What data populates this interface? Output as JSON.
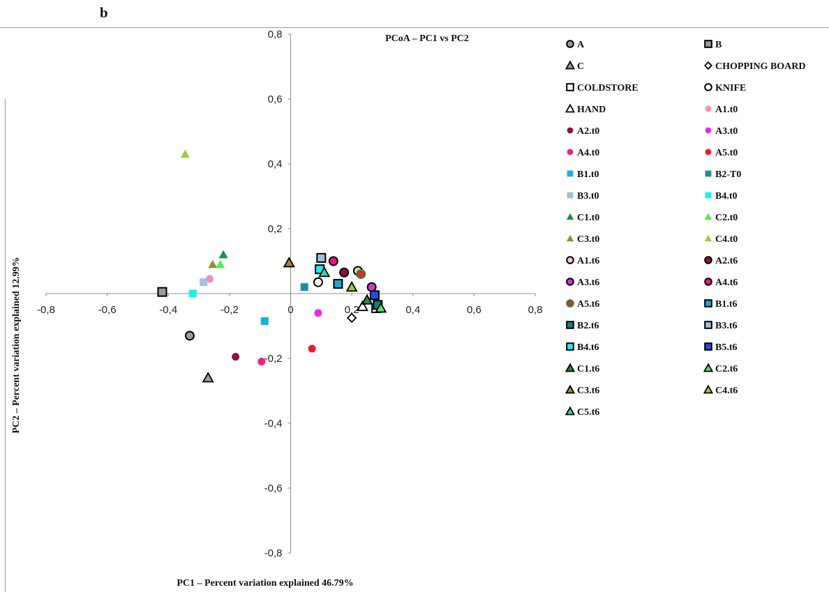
{
  "panel_label": "b",
  "chart_data": {
    "type": "scatter",
    "title": "PCoA – PC1 vs PC2",
    "xlabel": "PC1 – Percent variation explained 46.79%",
    "ylabel": "PC2 – Percent variation explained 12.99%",
    "xlim": [
      -0.8,
      0.8
    ],
    "ylim": [
      -0.8,
      0.8
    ],
    "xticks": [
      "-0,8",
      "-0,6",
      "-0,4",
      "-0,2",
      "0",
      "0,2",
      "0,4",
      "0,6",
      "0,8"
    ],
    "yticks": [
      "0,8",
      "0,6",
      "0,4",
      "0,2",
      "0",
      "-0,2",
      "-0,4",
      "-0,6",
      "-0,8"
    ],
    "grid": false,
    "legend_position": "right",
    "series": [
      {
        "name": "A",
        "marker": "circle",
        "fill": "#9c9c9c",
        "stroke": "#000000",
        "x": -0.33,
        "y": -0.13
      },
      {
        "name": "B",
        "marker": "square",
        "fill": "#9c9c9c",
        "stroke": "#000000",
        "x": -0.42,
        "y": 0.005
      },
      {
        "name": "C",
        "marker": "triangle",
        "fill": "#9c9c9c",
        "stroke": "#000000",
        "x": -0.27,
        "y": -0.26
      },
      {
        "name": "CHOPPING BOARD",
        "marker": "diamond",
        "fill": "#ffffff",
        "stroke": "#000000",
        "x": 0.2,
        "y": -0.075
      },
      {
        "name": "COLDSTORE",
        "marker": "square",
        "fill": "#ffffff",
        "stroke": "#000000",
        "x": 0.28,
        "y": -0.045
      },
      {
        "name": "KNIFE",
        "marker": "circle",
        "fill": "#ffffff",
        "stroke": "#000000",
        "x": 0.09,
        "y": 0.035
      },
      {
        "name": "HAND",
        "marker": "triangle",
        "fill": "#ffffff",
        "stroke": "#000000",
        "x": 0.235,
        "y": -0.04
      },
      {
        "name": "A1.t0",
        "marker": "dot",
        "fill": "#f48fbd",
        "stroke": "none",
        "x": -0.265,
        "y": 0.045
      },
      {
        "name": "A2.t0",
        "marker": "dot",
        "fill": "#8a1245",
        "stroke": "none",
        "x": -0.18,
        "y": -0.195
      },
      {
        "name": "A3.t0",
        "marker": "dot",
        "fill": "#e62ee0",
        "stroke": "none",
        "x": 0.09,
        "y": -0.06
      },
      {
        "name": "A4.t0",
        "marker": "dot",
        "fill": "#ef1f82",
        "stroke": "none",
        "x": -0.095,
        "y": -0.21
      },
      {
        "name": "A5.t0",
        "marker": "dot",
        "fill": "#ee1c24",
        "stroke": "none",
        "x": 0.07,
        "y": -0.17
      },
      {
        "name": "B1.t0",
        "marker": "sq",
        "fill": "#1ab1dd",
        "stroke": "none",
        "x": -0.085,
        "y": -0.085
      },
      {
        "name": "B2-T0",
        "marker": "sq",
        "fill": "#1a8fa3",
        "stroke": "none",
        "x": 0.045,
        "y": 0.02
      },
      {
        "name": "B3.t0",
        "marker": "sq",
        "fill": "#9ec3df",
        "stroke": "none",
        "x": -0.285,
        "y": 0.035
      },
      {
        "name": "B4.t0",
        "marker": "sq",
        "fill": "#19f0f0",
        "stroke": "none",
        "x": -0.32,
        "y": 0.0
      },
      {
        "name": "C1.t0",
        "marker": "tri",
        "fill": "#1c8f3a",
        "stroke": "none",
        "x": -0.22,
        "y": 0.12
      },
      {
        "name": "C2.t0",
        "marker": "tri",
        "fill": "#52ec52",
        "stroke": "none",
        "x": -0.23,
        "y": 0.09
      },
      {
        "name": "C3.t0",
        "marker": "tri",
        "fill": "#a08a2c",
        "stroke": "none",
        "x": -0.255,
        "y": 0.09
      },
      {
        "name": "C4.t0",
        "marker": "tri",
        "fill": "#9acd3a",
        "stroke": "none",
        "x": -0.345,
        "y": 0.43
      },
      {
        "name": "A1.t6",
        "marker": "circle",
        "fill": "#f7c4d8",
        "stroke": "#000000",
        "x": 0.22,
        "y": 0.07
      },
      {
        "name": "A2.t6",
        "marker": "circle",
        "fill": "#8a1245",
        "stroke": "#000000",
        "x": 0.175,
        "y": 0.065
      },
      {
        "name": "A3.t6",
        "marker": "circle",
        "fill": "#d933c9",
        "stroke": "#000000",
        "x": 0.265,
        "y": 0.02
      },
      {
        "name": "A4.t6",
        "marker": "circle",
        "fill": "#e8187e",
        "stroke": "#000000",
        "x": 0.14,
        "y": 0.1
      },
      {
        "name": "A5.t6",
        "marker": "circle",
        "fill": "#e52a2a",
        "stroke": "#1c8f3a",
        "x": 0.23,
        "y": 0.06
      },
      {
        "name": "B1.t6",
        "marker": "square",
        "fill": "#19a7d8",
        "stroke": "#000000",
        "x": 0.155,
        "y": 0.03
      },
      {
        "name": "B2.t6",
        "marker": "square",
        "fill": "#157c90",
        "stroke": "#000000",
        "x": 0.285,
        "y": -0.035
      },
      {
        "name": "B3.t6",
        "marker": "square",
        "fill": "#9ec3df",
        "stroke": "#000000",
        "x": 0.1,
        "y": 0.11
      },
      {
        "name": "B4.t6",
        "marker": "square",
        "fill": "#19f0f0",
        "stroke": "#000000",
        "x": 0.095,
        "y": 0.075
      },
      {
        "name": "B5.t6",
        "marker": "square",
        "fill": "#1f4fe0",
        "stroke": "#000000",
        "x": 0.275,
        "y": -0.005
      },
      {
        "name": "C1.t6",
        "marker": "triangle",
        "fill": "#1c8f3a",
        "stroke": "#000000",
        "x": 0.25,
        "y": -0.02
      },
      {
        "name": "C2.t6",
        "marker": "triangle",
        "fill": "#52ec52",
        "stroke": "#000000",
        "x": 0.295,
        "y": -0.045
      },
      {
        "name": "C3.t6",
        "marker": "triangle",
        "fill": "#a08a2c",
        "stroke": "#000000",
        "x": -0.005,
        "y": 0.095
      },
      {
        "name": "C4.t6",
        "marker": "triangle",
        "fill": "#9acd3a",
        "stroke": "#000000",
        "x": 0.2,
        "y": 0.02
      },
      {
        "name": "C5.t6",
        "marker": "triangle",
        "fill": "#2fd6b8",
        "stroke": "#000000",
        "x": 0.11,
        "y": 0.065
      }
    ]
  }
}
